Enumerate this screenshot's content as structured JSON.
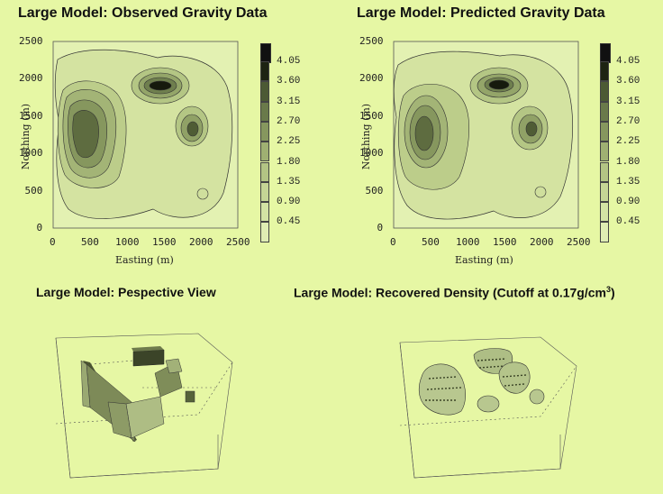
{
  "panels": {
    "observed": {
      "title": "Large Model:  Observed Gravity Data"
    },
    "predicted": {
      "title": "Large Model:  Predicted Gravity Data"
    },
    "perspective": {
      "title": "Large Model:  Pespective View"
    },
    "recovered": {
      "title": "Large Model: Recovered Density (Cutoff at 0.17g/cm",
      "title_sup": "3",
      "title_end": ")"
    }
  },
  "axes": {
    "xlabel": "Easting (m)",
    "ylabel": "Northing (m)",
    "ticks": [
      "0",
      "500",
      "1000",
      "1500",
      "2000",
      "2500"
    ]
  },
  "colorbar": {
    "levels": [
      "4.05",
      "3.60",
      "3.15",
      "2.70",
      "2.25",
      "1.80",
      "1.35",
      "0.90",
      "0.45"
    ],
    "colors": [
      "#1d2412",
      "#4c5a34",
      "#6a7a4a",
      "#86975e",
      "#9fb072",
      "#b3c484",
      "#c5d595",
      "#d3e3a4",
      "#dfedb3"
    ]
  },
  "colors": {
    "background": "#e6f7a4"
  }
}
